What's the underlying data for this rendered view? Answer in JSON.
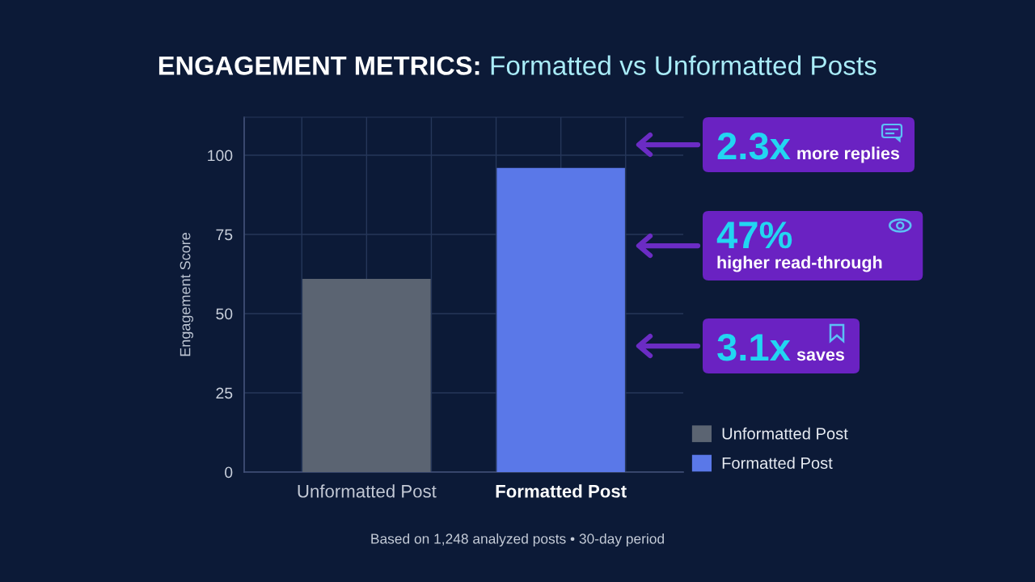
{
  "chart_data": {
    "type": "bar",
    "title": "ENGAGEMENT METRICS:",
    "subtitle": "Formatted vs Unformatted Posts",
    "ylabel": "Engagement Score",
    "categories": [
      "Unformatted Post",
      "Formatted Post"
    ],
    "series": [
      {
        "name": "Unformatted Post",
        "color": "#5b6472",
        "values": [
          61,
          null
        ]
      },
      {
        "name": "Formatted Post",
        "color": "#5a78e8",
        "values": [
          null,
          96
        ]
      }
    ],
    "stacked": true,
    "ylim": [
      0,
      112
    ],
    "yticks": [
      0,
      25,
      50,
      75,
      100
    ],
    "grid": true,
    "legend": "bottom right",
    "annotations": [
      "2.3x more replies",
      "47% higher read-through",
      "3.1x saves",
      "Based on 1,248 analyzed posts • 30-day period"
    ]
  }
}
